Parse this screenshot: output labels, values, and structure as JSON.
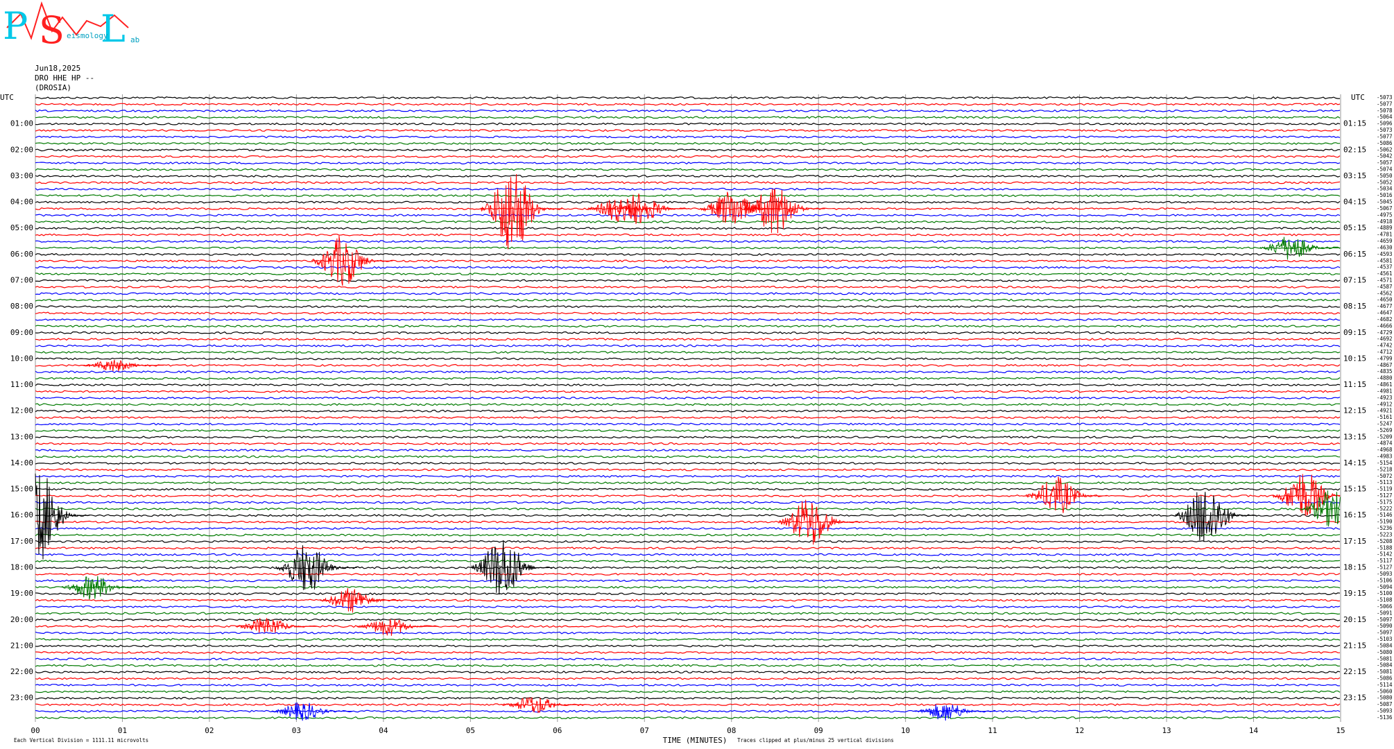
{
  "logo": {
    "big": [
      "P",
      "S",
      "L"
    ],
    "small": [
      "eismology",
      "ab"
    ]
  },
  "header": {
    "date": "Jun18,2025",
    "channel": "DRO HHE HP --",
    "station": "(DROSIA)",
    "utc_left": "UTC",
    "utc_right": "UTC"
  },
  "chart_data": {
    "type": "helicorder",
    "colors": [
      "#000000",
      "#ff0000",
      "#0000ff",
      "#007a00"
    ],
    "xlim": [
      0,
      15
    ],
    "xticks": [
      {
        "value": 0,
        "label": "00"
      },
      {
        "value": 1,
        "label": "01"
      },
      {
        "value": 2,
        "label": "02"
      },
      {
        "value": 3,
        "label": "03"
      },
      {
        "value": 4,
        "label": "04"
      },
      {
        "value": 5,
        "label": "05"
      },
      {
        "value": 6,
        "label": "06"
      },
      {
        "value": 7,
        "label": "07"
      },
      {
        "value": 8,
        "label": "08"
      },
      {
        "value": 9,
        "label": "09"
      },
      10,
      11,
      12,
      13,
      14,
      15
    ],
    "xlabel": "TIME (MINUTES)",
    "scale_note": "Each Vertical Division = 1111.11 microvolts",
    "clip_note": "Traces clipped at plus/minus 25 vertical divisions",
    "left_labels": [
      "01:00",
      "02:00",
      "03:00",
      "04:00",
      "05:00",
      "06:00",
      "07:00",
      "08:00",
      "09:00",
      "10:00",
      "11:00",
      "12:00",
      "13:00",
      "14:00",
      "15:00",
      "16:00",
      "17:00",
      "18:00",
      "19:00",
      "20:00",
      "21:00",
      "22:00",
      "23:00"
    ],
    "right_labels": [
      "01:15",
      "02:15",
      "03:15",
      "04:15",
      "05:15",
      "06:15",
      "07:15",
      "08:15",
      "09:15",
      "10:15",
      "11:15",
      "12:15",
      "13:15",
      "14:15",
      "15:15",
      "16:15",
      "17:15",
      "18:15",
      "19:15",
      "20:15",
      "21:15",
      "22:15",
      "23:15"
    ],
    "trace_offsets": [
      -5073,
      -5077,
      -5078,
      -5064,
      -5096,
      -5073,
      -5077,
      -5086,
      -5062,
      -5042,
      -5057,
      -5074,
      -5050,
      -5052,
      -5034,
      -5016,
      -5045,
      -5067,
      -4975,
      -4918,
      -4889,
      -4781,
      -4659,
      -4630,
      -4593,
      -4581,
      -4537,
      -4561,
      -4571,
      -4587,
      -4562,
      -4650,
      -4677,
      -4647,
      -4682,
      -4666,
      -4729,
      -4692,
      -4742,
      -4712,
      -4799,
      -4867,
      -4835,
      -4880,
      -4861,
      -4981,
      -4923,
      -4912,
      -4921,
      -5161,
      -5247,
      -5269,
      -5209,
      -4874,
      -4968,
      -4983,
      -5154,
      -5218,
      -5072,
      -5113,
      -5119,
      -5127,
      -5175,
      -5222,
      -5146,
      -5190,
      -5236,
      -5223,
      -5208,
      -5188,
      -5142,
      -5117,
      -5127,
      -5093,
      -5106,
      -5094,
      -5100,
      -5108,
      -5066,
      -5091,
      -5097,
      -5090,
      -5097,
      -5103,
      -5084,
      -5080,
      -5081,
      -5084,
      -5081,
      -5086,
      -5114,
      -5060,
      -5080,
      -5087,
      -5093,
      -5136
    ],
    "events": [
      {
        "trace": 17,
        "minute": 5.48,
        "amplitude": 7
      },
      {
        "trace": 17,
        "minute": 8.5,
        "amplitude": 4
      },
      {
        "trace": 17,
        "minute": 6.7,
        "amplitude": 2
      },
      {
        "trace": 17,
        "minute": 6.95,
        "amplitude": 2.5
      },
      {
        "trace": 17,
        "minute": 8.0,
        "amplitude": 3
      },
      {
        "trace": 25,
        "minute": 3.53,
        "amplitude": 4
      },
      {
        "trace": 23,
        "minute": 14.43,
        "amplitude": 2
      },
      {
        "trace": 41,
        "minute": 0.9,
        "amplitude": 1
      },
      {
        "trace": 64,
        "minute": 0.05,
        "amplitude": 7
      },
      {
        "trace": 65,
        "minute": 8.9,
        "amplitude": 4
      },
      {
        "trace": 61,
        "minute": 11.74,
        "amplitude": 3
      },
      {
        "trace": 64,
        "minute": 13.46,
        "amplitude": 5
      },
      {
        "trace": 61,
        "minute": 14.58,
        "amplitude": 4
      },
      {
        "trace": 63,
        "minute": 14.9,
        "amplitude": 3
      },
      {
        "trace": 72,
        "minute": 3.12,
        "amplitude": 4
      },
      {
        "trace": 72,
        "minute": 5.37,
        "amplitude": 5
      },
      {
        "trace": 75,
        "minute": 0.66,
        "amplitude": 2
      },
      {
        "trace": 77,
        "minute": 3.63,
        "amplitude": 2
      },
      {
        "trace": 81,
        "minute": 2.66,
        "amplitude": 1.5
      },
      {
        "trace": 81,
        "minute": 4.06,
        "amplitude": 1.5
      },
      {
        "trace": 93,
        "minute": 5.73,
        "amplitude": 1.5
      },
      {
        "trace": 94,
        "minute": 3.07,
        "amplitude": 1.5
      },
      {
        "trace": 94,
        "minute": 10.46,
        "amplitude": 1.5
      }
    ]
  }
}
